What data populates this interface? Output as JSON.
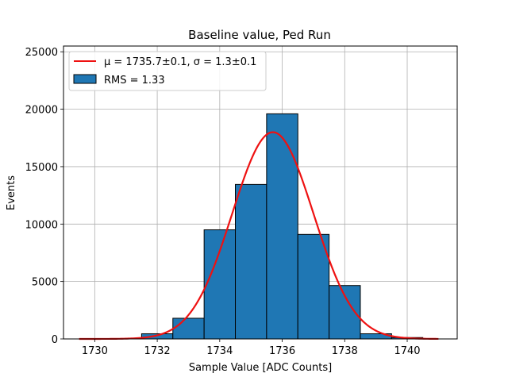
{
  "chart_data": {
    "type": "bar",
    "title": "Baseline value, Ped Run",
    "xlabel": "Sample Value [ADC Counts]",
    "ylabel": "Events",
    "xlim": [
      1729.0,
      1741.6
    ],
    "ylim": [
      0,
      25500
    ],
    "xticks": [
      1730,
      1732,
      1734,
      1736,
      1738,
      1740
    ],
    "yticks": [
      0,
      5000,
      10000,
      15000,
      20000,
      25000
    ],
    "grid": true,
    "legend_position": "top-left",
    "bins": [
      {
        "left": 1729.5,
        "right": 1730.5,
        "count": 0
      },
      {
        "left": 1730.5,
        "right": 1731.5,
        "count": 0
      },
      {
        "left": 1731.5,
        "right": 1732.5,
        "count": 450
      },
      {
        "left": 1732.5,
        "right": 1733.5,
        "count": 1800
      },
      {
        "left": 1733.5,
        "right": 1734.5,
        "count": 9500
      },
      {
        "left": 1734.5,
        "right": 1735.5,
        "count": 13450
      },
      {
        "left": 1735.5,
        "right": 1736.5,
        "count": 19600
      },
      {
        "left": 1736.5,
        "right": 1737.5,
        "count": 9100
      },
      {
        "left": 1737.5,
        "right": 1738.5,
        "count": 4650
      },
      {
        "left": 1738.5,
        "right": 1739.5,
        "count": 450
      },
      {
        "left": 1739.5,
        "right": 1740.5,
        "count": 120
      }
    ],
    "fit": {
      "mu": 1735.7,
      "sigma": 1.3,
      "amplitude": 18000,
      "x_range": [
        1729.5,
        1741.0
      ],
      "color": "#ee1111"
    },
    "bar_color": "#1f77b4",
    "legend": [
      {
        "label": "μ = 1735.7±0.1, σ = 1.3±0.1",
        "kind": "line",
        "color": "#ee1111"
      },
      {
        "label": "RMS = 1.33",
        "kind": "patch",
        "color": "#1f77b4"
      }
    ]
  }
}
